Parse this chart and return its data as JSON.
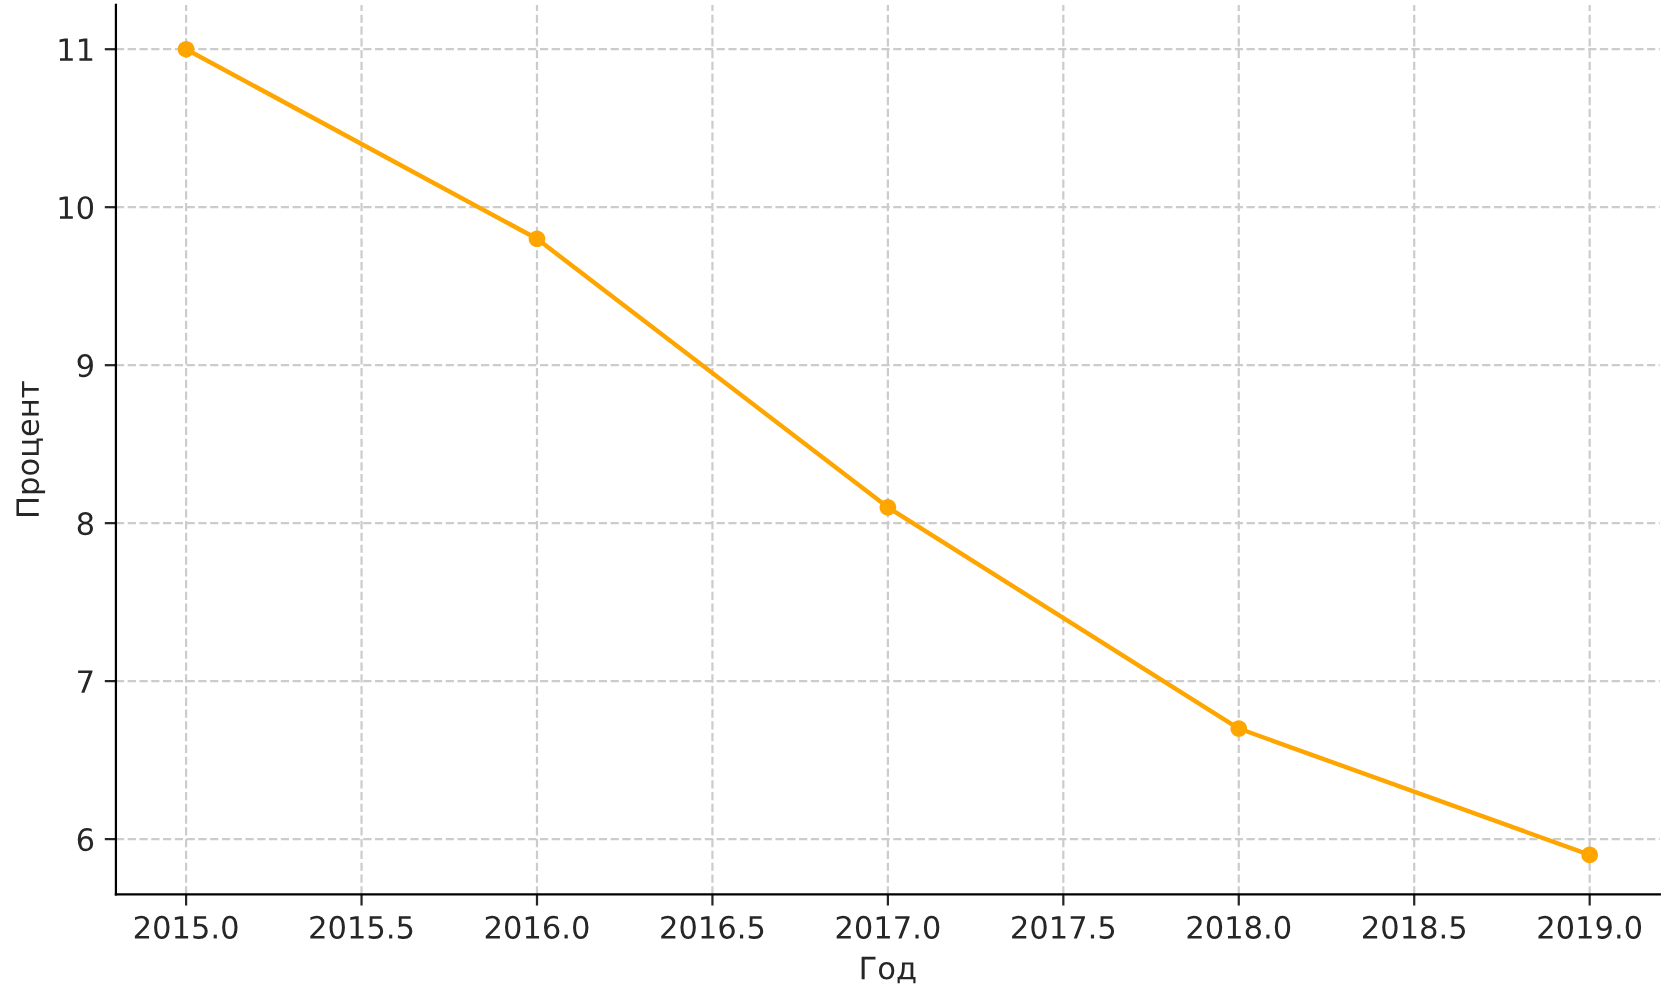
{
  "chart_data": {
    "type": "line",
    "xlabel": "Год",
    "ylabel": "Процент",
    "x": [
      2015,
      2016,
      2017,
      2018,
      2019
    ],
    "series": [
      {
        "color": "#ffa500",
        "values": [
          11,
          9.8,
          8.1,
          6.7,
          5.9
        ]
      }
    ],
    "marker": "circle",
    "line_style": "solid",
    "grid": true,
    "xlim": [
      2014.8,
      2019.2
    ],
    "ylim": [
      5.65,
      11.28
    ],
    "xticks": [
      {
        "value": 2015,
        "label": "2015.0"
      },
      {
        "value": 2015.5,
        "label": "2015.5"
      },
      {
        "value": 2016,
        "label": "2016.0"
      },
      {
        "value": 2016.5,
        "label": "2016.5"
      },
      {
        "value": 2017,
        "label": "2017.0"
      },
      {
        "value": 2017.5,
        "label": "2017.5"
      },
      {
        "value": 2018,
        "label": "2018.0"
      },
      {
        "value": 2018.5,
        "label": "2018.5"
      },
      {
        "value": 2019,
        "label": "2019.0"
      }
    ],
    "yticks": [
      6,
      7,
      8,
      9,
      10,
      11
    ]
  }
}
